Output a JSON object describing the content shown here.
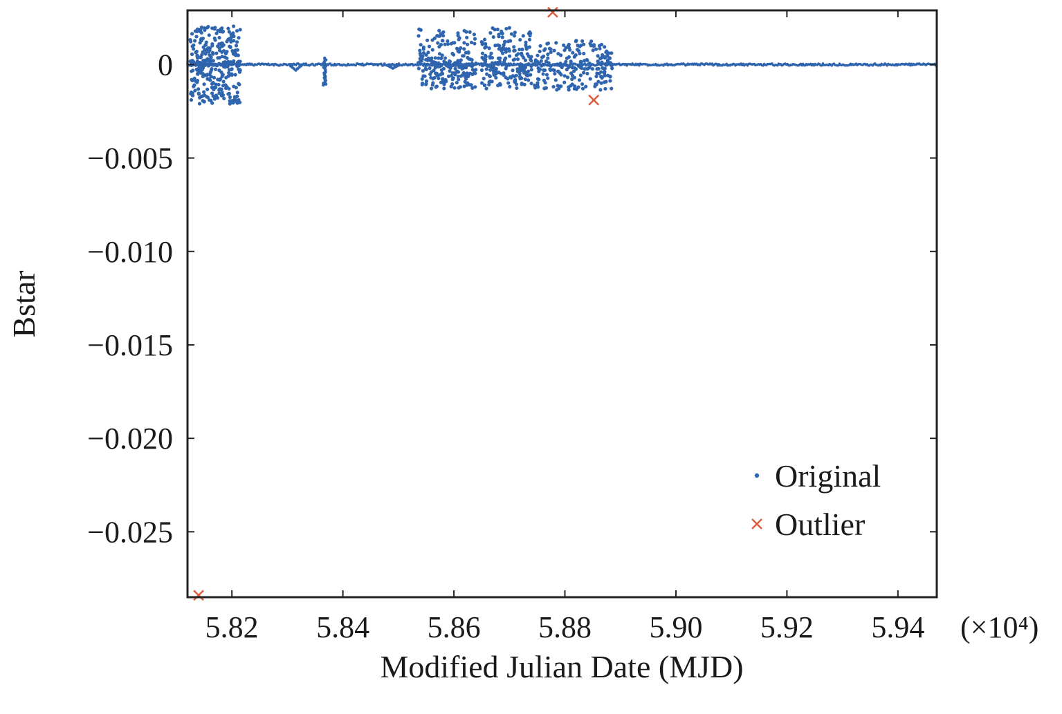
{
  "chart_data": {
    "type": "scatter",
    "xlabel": "Modified Julian Date (MJD)",
    "ylabel": "Bstar",
    "x_multiplier_label": "(×10⁴)",
    "xlim": [
      5.812,
      5.947
    ],
    "ylim": [
      -0.0285,
      0.0029
    ],
    "x_ticks": [
      5.82,
      5.84,
      5.86,
      5.88,
      5.9,
      5.92,
      5.94
    ],
    "x_tick_labels": [
      "5.82",
      "5.84",
      "5.86",
      "5.88",
      "5.90",
      "5.92",
      "5.94"
    ],
    "y_ticks": [
      0,
      -0.005,
      -0.01,
      -0.015,
      -0.02,
      -0.025
    ],
    "y_tick_labels": [
      "0",
      "−0.005",
      "−0.010",
      "−0.015",
      "−0.020",
      "−0.025"
    ],
    "grid": false,
    "legend_position": "bottom-right",
    "series": [
      {
        "name": "Original",
        "marker": "dot",
        "color": "#2f64ae",
        "baseline": [
          {
            "x_start": 5.812,
            "x_end": 5.947,
            "y": 0
          }
        ],
        "clusters": [
          {
            "x_start": 5.8125,
            "x_end": 5.8215,
            "y_min": -0.0021,
            "y_max": 0.0021,
            "count": 320
          },
          {
            "x_start": 5.8535,
            "x_end": 5.864,
            "y_min": -0.0013,
            "y_max": 0.0019,
            "count": 230
          },
          {
            "x_start": 5.865,
            "x_end": 5.874,
            "y_min": -0.0013,
            "y_max": 0.002,
            "count": 200
          },
          {
            "x_start": 5.8745,
            "x_end": 5.8885,
            "y_min": -0.0014,
            "y_max": 0.0013,
            "count": 220
          }
        ],
        "features": [
          {
            "x": 5.8367,
            "y_min": -0.0011,
            "y_max": 0.0004
          },
          {
            "x": 5.8315,
            "y": -0.0003
          },
          {
            "x": 5.849,
            "y": -0.0002
          }
        ]
      },
      {
        "name": "Outlier",
        "marker": "x",
        "color": "#e05a3c",
        "points": [
          {
            "x": 5.814,
            "y": -0.0284
          },
          {
            "x": 5.8778,
            "y": 0.0028
          },
          {
            "x": 5.8852,
            "y": -0.0019
          }
        ]
      }
    ]
  }
}
